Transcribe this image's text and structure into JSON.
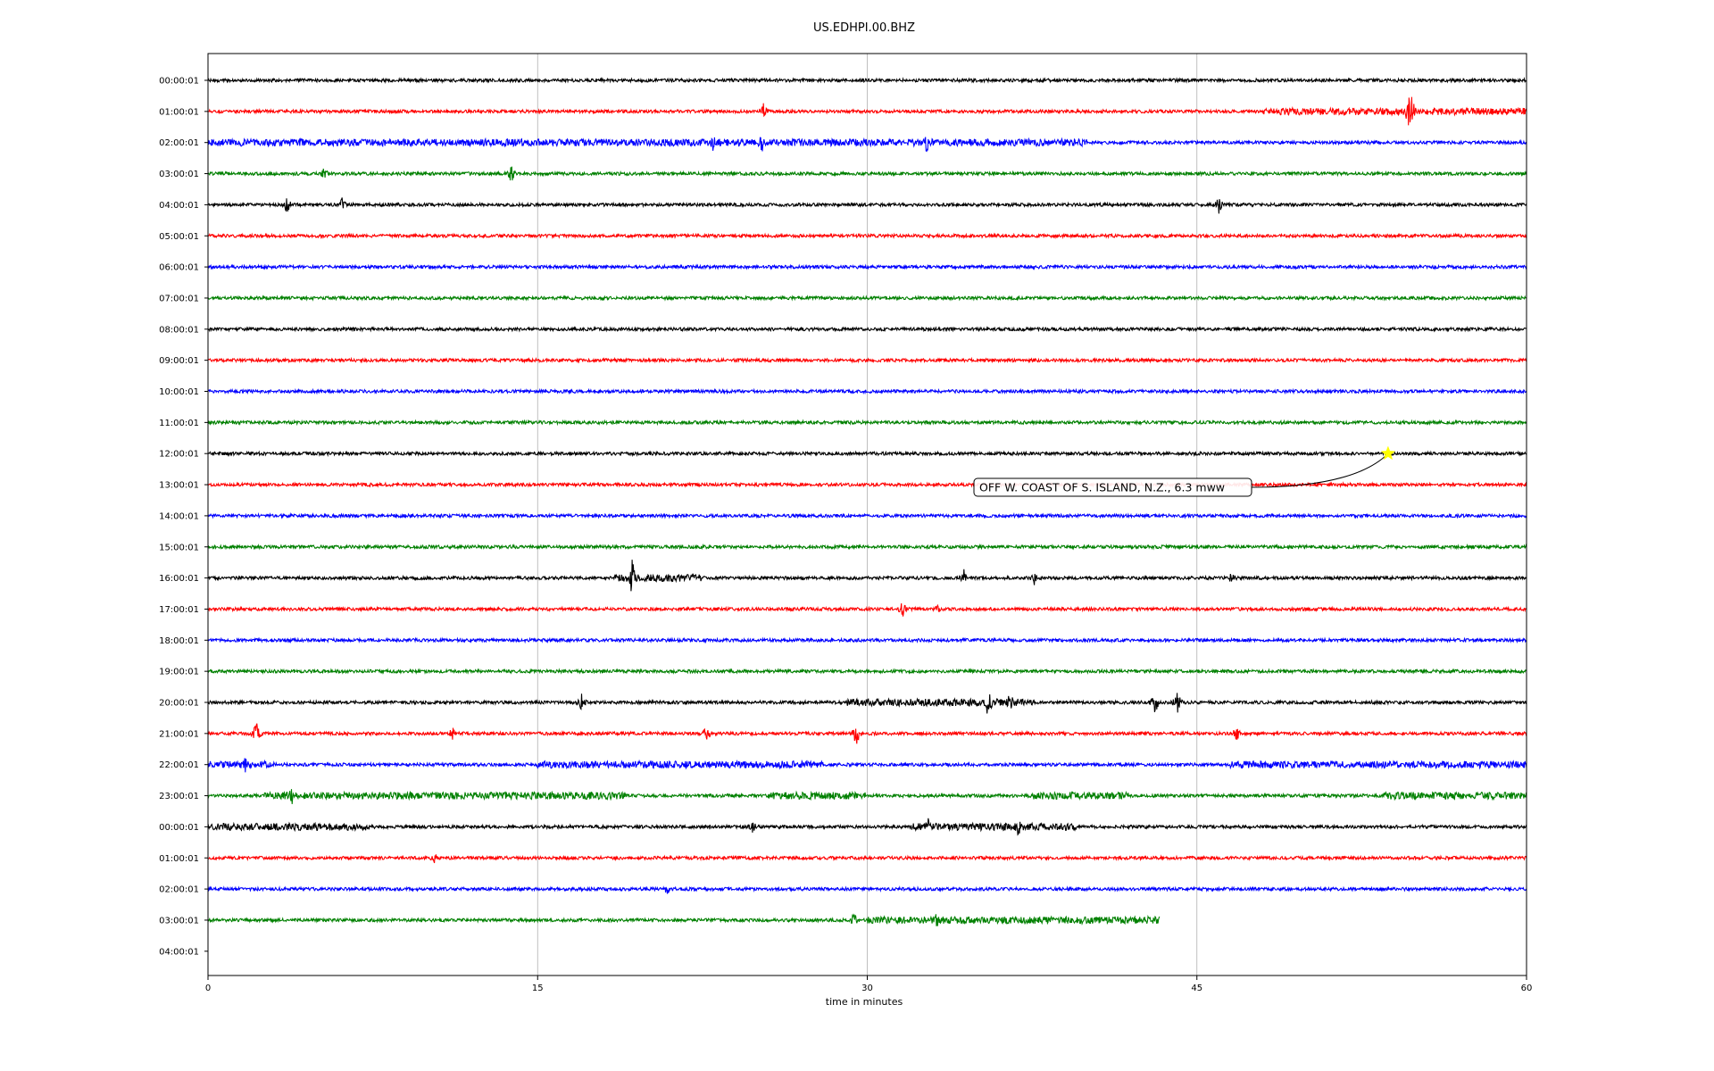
{
  "chart_data": {
    "type": "line",
    "title": "US.EDHPI.00.BHZ",
    "xlabel": "time in minutes",
    "ylabel": "",
    "xlim": [
      0,
      60
    ],
    "xticks": [
      0,
      15,
      30,
      45,
      60
    ],
    "grid": "vertical lines at x ticks",
    "colors": [
      "#000000",
      "#ff0000",
      "#0000ff",
      "#008000"
    ],
    "row_labels": [
      "00:00:01",
      "01:00:01",
      "02:00:01",
      "03:00:01",
      "04:00:01",
      "05:00:01",
      "06:00:01",
      "07:00:01",
      "08:00:01",
      "09:00:01",
      "10:00:01",
      "11:00:01",
      "12:00:01",
      "13:00:01",
      "14:00:01",
      "15:00:01",
      "16:00:01",
      "17:00:01",
      "18:00:01",
      "19:00:01",
      "20:00:01",
      "21:00:01",
      "22:00:01",
      "23:00:01",
      "00:00:01",
      "01:00:01",
      "02:00:01",
      "03:00:01",
      "04:00:01"
    ],
    "trace_end_minutes": [
      60,
      60,
      60,
      60,
      60,
      60,
      60,
      60,
      60,
      60,
      60,
      60,
      60,
      60,
      60,
      60,
      60,
      60,
      60,
      60,
      60,
      60,
      60,
      60,
      60,
      60,
      60,
      43.3,
      0
    ],
    "event": {
      "label": "OFF W. COAST OF S. ISLAND, N.Z., 6.3 mww",
      "row": 12,
      "minute": 53.7,
      "marker_color": "#ffff00",
      "marker": "star"
    },
    "notable_spikes": [
      {
        "row": 1,
        "minute": 54.7,
        "amplitude": 1.6
      },
      {
        "row": 1,
        "minute": 25.3,
        "amplitude": 0.6
      },
      {
        "row": 2,
        "minute": 23.0,
        "amplitude": 0.6
      },
      {
        "row": 2,
        "minute": 25.2,
        "amplitude": 0.6
      },
      {
        "row": 2,
        "minute": 32.7,
        "amplitude": 0.6
      },
      {
        "row": 3,
        "minute": 5.3,
        "amplitude": 0.5
      },
      {
        "row": 3,
        "minute": 13.8,
        "amplitude": 0.6
      },
      {
        "row": 4,
        "minute": 3.6,
        "amplitude": 0.5
      },
      {
        "row": 4,
        "minute": 6.1,
        "amplitude": 0.4
      },
      {
        "row": 4,
        "minute": 46.0,
        "amplitude": 0.5
      },
      {
        "row": 16,
        "minute": 19.3,
        "amplitude": 1.2
      },
      {
        "row": 16,
        "minute": 34.4,
        "amplitude": 0.5
      },
      {
        "row": 16,
        "minute": 37.6,
        "amplitude": 0.4
      },
      {
        "row": 16,
        "minute": 46.6,
        "amplitude": 0.4
      },
      {
        "row": 17,
        "minute": 31.6,
        "amplitude": 0.5
      },
      {
        "row": 17,
        "minute": 33.2,
        "amplitude": 0.4
      },
      {
        "row": 20,
        "minute": 17.0,
        "amplitude": 0.5
      },
      {
        "row": 20,
        "minute": 35.5,
        "amplitude": 0.9
      },
      {
        "row": 20,
        "minute": 36.5,
        "amplitude": 0.6
      },
      {
        "row": 20,
        "minute": 43.1,
        "amplitude": 0.7
      },
      {
        "row": 20,
        "minute": 44.1,
        "amplitude": 0.7
      },
      {
        "row": 21,
        "minute": 2.2,
        "amplitude": 0.7
      },
      {
        "row": 21,
        "minute": 11.1,
        "amplitude": 0.5
      },
      {
        "row": 21,
        "minute": 22.7,
        "amplitude": 0.6
      },
      {
        "row": 21,
        "minute": 29.5,
        "amplitude": 0.7
      },
      {
        "row": 21,
        "minute": 46.8,
        "amplitude": 0.5
      },
      {
        "row": 22,
        "minute": 1.7,
        "amplitude": 0.5
      },
      {
        "row": 23,
        "minute": 3.8,
        "amplitude": 0.6
      },
      {
        "row": 24,
        "minute": 24.8,
        "amplitude": 0.5
      },
      {
        "row": 24,
        "minute": 32.8,
        "amplitude": 0.6
      },
      {
        "row": 24,
        "minute": 36.9,
        "amplitude": 0.7
      },
      {
        "row": 25,
        "minute": 10.3,
        "amplitude": 0.4
      },
      {
        "row": 26,
        "minute": 20.9,
        "amplitude": 0.4
      },
      {
        "row": 27,
        "minute": 29.4,
        "amplitude": 0.5
      },
      {
        "row": 27,
        "minute": 33.2,
        "amplitude": 0.6
      }
    ],
    "noisy_segments": [
      {
        "row": 1,
        "from": 48.0,
        "to": 60.0
      },
      {
        "row": 2,
        "from": 0.0,
        "to": 40.0
      },
      {
        "row": 16,
        "from": 18.5,
        "to": 22.5
      },
      {
        "row": 20,
        "from": 29.0,
        "to": 37.5
      },
      {
        "row": 22,
        "from": 0.0,
        "to": 3.0
      },
      {
        "row": 22,
        "from": 15.0,
        "to": 20.0
      },
      {
        "row": 22,
        "from": 20.0,
        "to": 28.0
      },
      {
        "row": 22,
        "from": 46.5,
        "to": 60.0
      },
      {
        "row": 23,
        "from": 2.5,
        "to": 19.0
      },
      {
        "row": 23,
        "from": 25.5,
        "to": 30.0
      },
      {
        "row": 23,
        "from": 37.5,
        "to": 42.0
      },
      {
        "row": 23,
        "from": 53.5,
        "to": 60.0
      },
      {
        "row": 24,
        "from": 0.0,
        "to": 7.5
      },
      {
        "row": 24,
        "from": 32.0,
        "to": 39.5
      },
      {
        "row": 27,
        "from": 30.0,
        "to": 43.3
      }
    ]
  }
}
